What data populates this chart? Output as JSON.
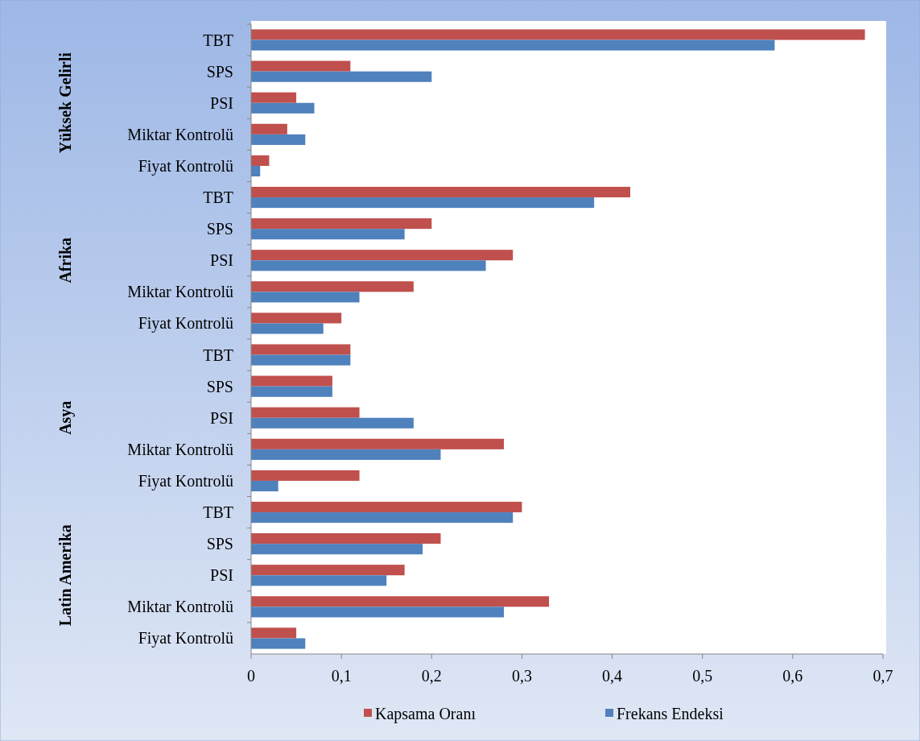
{
  "chart_data": {
    "type": "bar",
    "orientation": "horizontal",
    "categories": [
      "TBT",
      "SPS",
      "PSI",
      "Miktar Kontrolü",
      "Fiyat Kontrolü",
      "TBT",
      "SPS",
      "PSI",
      "Miktar Kontrolü",
      "Fiyat Kontrolü",
      "TBT",
      "SPS",
      "PSI",
      "Miktar Kontrolü",
      "Fiyat Kontrolü",
      "TBT",
      "SPS",
      "PSI",
      "Miktar Kontrolü",
      "Fiyat Kontrolü"
    ],
    "annotations": [
      "Yüksek Gelirli",
      "Afrika",
      "Asya",
      "Latin Amerika"
    ],
    "series": [
      {
        "name": "Kapsama Oranı",
        "color": "#c0504d",
        "values": [
          0.68,
          0.11,
          0.05,
          0.04,
          0.02,
          0.42,
          0.2,
          0.29,
          0.18,
          0.1,
          0.11,
          0.09,
          0.12,
          0.28,
          0.12,
          0.3,
          0.21,
          0.17,
          0.33,
          0.05
        ]
      },
      {
        "name": "Frekans Endeksi",
        "color": "#4f81bd",
        "values": [
          0.58,
          0.2,
          0.07,
          0.06,
          0.01,
          0.38,
          0.17,
          0.26,
          0.12,
          0.08,
          0.11,
          0.09,
          0.18,
          0.21,
          0.03,
          0.29,
          0.19,
          0.15,
          0.28,
          0.06
        ]
      }
    ],
    "xlim": [
      0,
      0.7
    ],
    "xticks": [
      0,
      {
        "value": 0.1,
        "label": "0,1"
      },
      {
        "value": 0.2,
        "label": "0,2"
      },
      {
        "value": 0.3,
        "label": "0,3"
      },
      {
        "value": 0.4,
        "label": "0,4"
      },
      {
        "value": 0.5,
        "label": "0,5"
      },
      {
        "value": 0.6,
        "label": "0,6"
      },
      {
        "value": 0.7,
        "label": "0,7"
      }
    ],
    "grid": false,
    "legend": "bottom"
  }
}
